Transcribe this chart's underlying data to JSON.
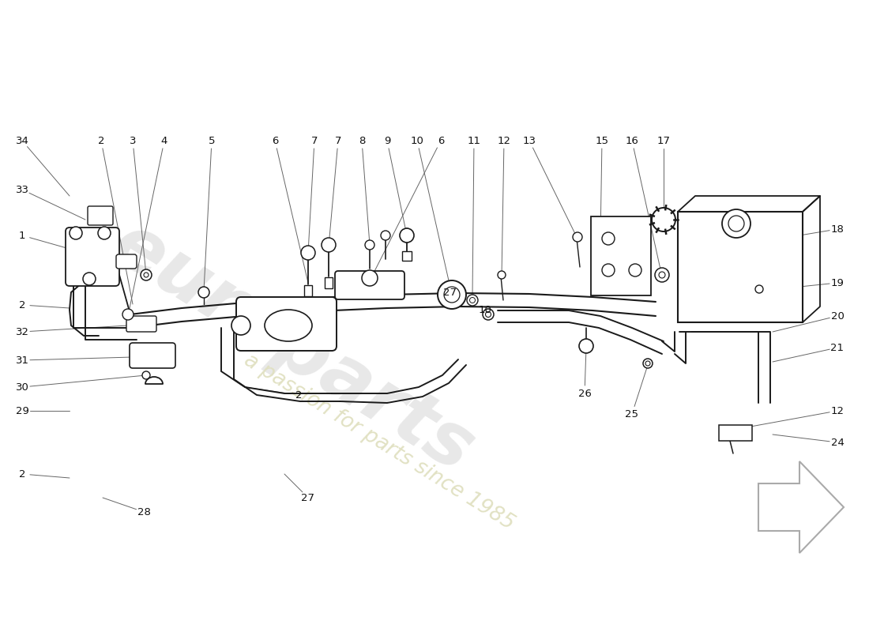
{
  "bg_color": "#ffffff",
  "line_color": "#1a1a1a",
  "label_color": "#111111",
  "leader_color": "#666666",
  "watermark1": "europarts",
  "watermark2": "a passion for parts since 1985",
  "wm1_color": "#cccccc",
  "wm2_color": "#e0e0c0",
  "label_fs": 9.5,
  "top_labels": [
    [
      "34",
      28,
      178
    ],
    [
      "2",
      128,
      178
    ],
    [
      "3",
      168,
      178
    ],
    [
      "4",
      208,
      178
    ],
    [
      "5",
      268,
      178
    ],
    [
      "6",
      348,
      178
    ],
    [
      "7",
      398,
      178
    ],
    [
      "7",
      428,
      178
    ],
    [
      "8",
      458,
      178
    ],
    [
      "9",
      490,
      178
    ],
    [
      "10",
      528,
      178
    ],
    [
      "6",
      558,
      178
    ],
    [
      "11",
      600,
      178
    ],
    [
      "12",
      638,
      178
    ],
    [
      "13",
      670,
      178
    ],
    [
      "15",
      762,
      178
    ],
    [
      "16",
      800,
      178
    ],
    [
      "17",
      840,
      178
    ]
  ],
  "right_labels": [
    [
      "18",
      1060,
      290
    ],
    [
      "19",
      1060,
      358
    ],
    [
      "20",
      1060,
      400
    ],
    [
      "21",
      1060,
      440
    ],
    [
      "12",
      1060,
      520
    ],
    [
      "24",
      1060,
      560
    ]
  ],
  "left_labels": [
    [
      "33",
      28,
      240
    ],
    [
      "1",
      28,
      298
    ],
    [
      "2",
      28,
      386
    ],
    [
      "32",
      28,
      420
    ],
    [
      "31",
      28,
      456
    ],
    [
      "30",
      28,
      490
    ],
    [
      "29",
      28,
      520
    ],
    [
      "2",
      28,
      600
    ]
  ],
  "bottom_labels": [
    [
      "28",
      182,
      648
    ],
    [
      "27",
      390,
      630
    ]
  ],
  "mid_labels": [
    [
      "2",
      378,
      500
    ],
    [
      "27",
      570,
      370
    ],
    [
      "10",
      614,
      392
    ],
    [
      "26",
      740,
      498
    ],
    [
      "25",
      800,
      524
    ]
  ]
}
